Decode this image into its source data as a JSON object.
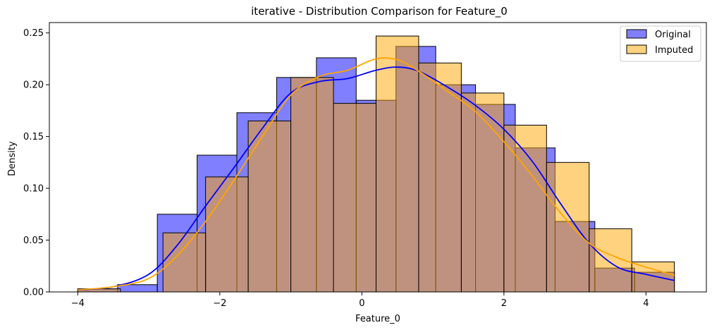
{
  "chart_data": {
    "type": "bar",
    "title": "iterative - Distribution Comparison for Feature_0",
    "xlabel": "Feature_0",
    "ylabel": "Density",
    "xlim": [
      -4.4,
      4.85
    ],
    "ylim": [
      0,
      0.26
    ],
    "xticks": [
      -4,
      -2,
      0,
      2,
      4
    ],
    "xtick_labels": [
      "−4",
      "−2",
      "0",
      "2",
      "4"
    ],
    "yticks": [
      0.0,
      0.05,
      0.1,
      0.15,
      0.2,
      0.25
    ],
    "ytick_labels": [
      "0.00",
      "0.05",
      "0.10",
      "0.15",
      "0.20",
      "0.25"
    ],
    "grid": false,
    "legend_position": "top-right",
    "series": [
      {
        "name": "Original",
        "color": "#0000ff",
        "bin_edges": [
          -4.0,
          -3.44,
          -2.88,
          -2.32,
          -1.76,
          -1.2,
          -0.64,
          -0.08,
          0.48,
          1.04,
          1.6,
          2.16,
          2.72,
          3.28,
          3.84,
          4.4
        ],
        "values": [
          0.003,
          0.007,
          0.075,
          0.132,
          0.173,
          0.207,
          0.226,
          0.185,
          0.237,
          0.2,
          0.181,
          0.139,
          0.068,
          0.023,
          0.019
        ],
        "kde": [
          [
            -4.0,
            0.002
          ],
          [
            -3.5,
            0.005
          ],
          [
            -3.0,
            0.017
          ],
          [
            -2.6,
            0.045
          ],
          [
            -2.2,
            0.083
          ],
          [
            -1.8,
            0.12
          ],
          [
            -1.4,
            0.158
          ],
          [
            -1.0,
            0.192
          ],
          [
            -0.6,
            0.203
          ],
          [
            -0.2,
            0.206
          ],
          [
            0.2,
            0.214
          ],
          [
            0.5,
            0.217
          ],
          [
            0.8,
            0.213
          ],
          [
            1.2,
            0.198
          ],
          [
            1.6,
            0.18
          ],
          [
            2.0,
            0.157
          ],
          [
            2.4,
            0.126
          ],
          [
            2.8,
            0.085
          ],
          [
            3.2,
            0.047
          ],
          [
            3.6,
            0.024
          ],
          [
            4.0,
            0.017
          ],
          [
            4.4,
            0.011
          ]
        ]
      },
      {
        "name": "Imputed",
        "color": "#ffa500",
        "bin_edges": [
          -4.0,
          -3.4,
          -2.8,
          -2.2,
          -1.6,
          -1.0,
          -0.4,
          0.2,
          0.8,
          1.4,
          2.0,
          2.6,
          3.2,
          3.8,
          4.4
        ],
        "values": [
          0.003,
          0.0,
          0.057,
          0.111,
          0.165,
          0.207,
          0.182,
          0.247,
          0.221,
          0.192,
          0.161,
          0.125,
          0.061,
          0.029
        ],
        "kde": [
          [
            -4.0,
            0.002
          ],
          [
            -3.5,
            0.005
          ],
          [
            -3.0,
            0.013
          ],
          [
            -2.6,
            0.035
          ],
          [
            -2.2,
            0.068
          ],
          [
            -1.8,
            0.108
          ],
          [
            -1.4,
            0.15
          ],
          [
            -1.0,
            0.19
          ],
          [
            -0.6,
            0.208
          ],
          [
            -0.2,
            0.214
          ],
          [
            0.2,
            0.225
          ],
          [
            0.5,
            0.224
          ],
          [
            0.8,
            0.213
          ],
          [
            1.2,
            0.194
          ],
          [
            1.6,
            0.174
          ],
          [
            2.0,
            0.145
          ],
          [
            2.4,
            0.112
          ],
          [
            2.8,
            0.076
          ],
          [
            3.2,
            0.047
          ],
          [
            3.6,
            0.033
          ],
          [
            4.0,
            0.024
          ],
          [
            4.4,
            0.016
          ]
        ]
      }
    ]
  }
}
